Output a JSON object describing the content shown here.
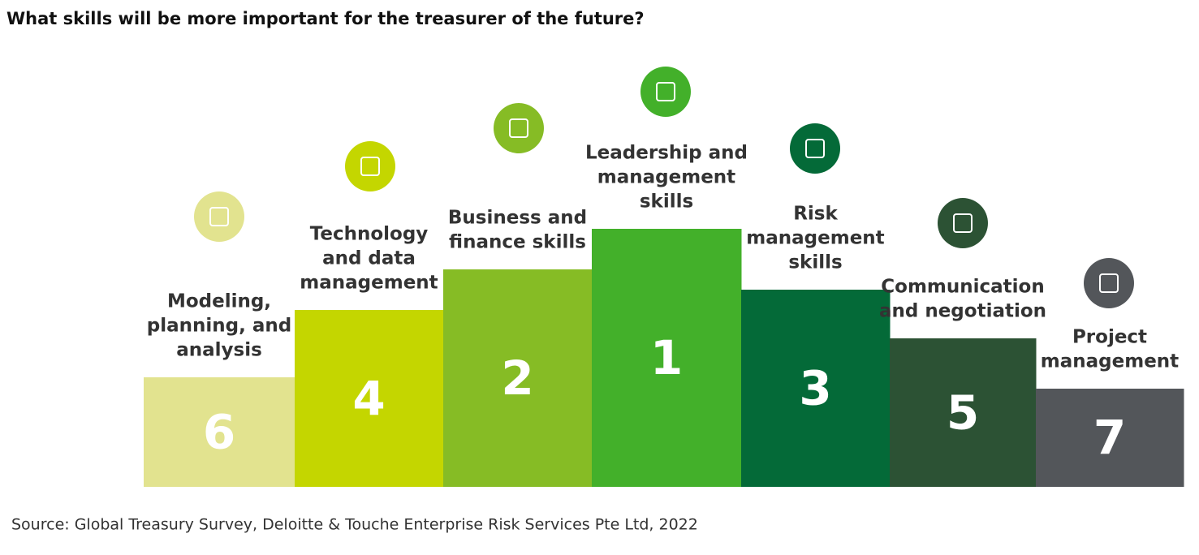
{
  "title": "What skills will be more important for the treasurer of the future?",
  "items": [
    {
      "label_lines": [
        "Modeling,",
        "planning, and",
        "analysis"
      ],
      "rank": "6",
      "color": "#e2e38f"
    },
    {
      "label_lines": [
        "Technology",
        "and data",
        "management"
      ],
      "rank": "4",
      "color": "#c4d600"
    },
    {
      "label_lines": [
        "Business and",
        "finance skills"
      ],
      "rank": "2",
      "color": "#86bc25"
    },
    {
      "label_lines": [
        "Leadership and",
        "management",
        "skills"
      ],
      "rank": "1",
      "color": "#43b02a"
    },
    {
      "label_lines": [
        "Risk",
        "management",
        "skills"
      ],
      "rank": "3",
      "color": "#046a38"
    },
    {
      "label_lines": [
        "Communication",
        "and negotiation"
      ],
      "rank": "5",
      "color": "#2c5234"
    },
    {
      "label_lines": [
        "Project",
        "management"
      ],
      "rank": "7",
      "color": "#53565a"
    }
  ],
  "source": "Source: Global Treasury Survey, Deloitte & Touche Enterprise Risk Services Pte Ltd, 2022"
}
